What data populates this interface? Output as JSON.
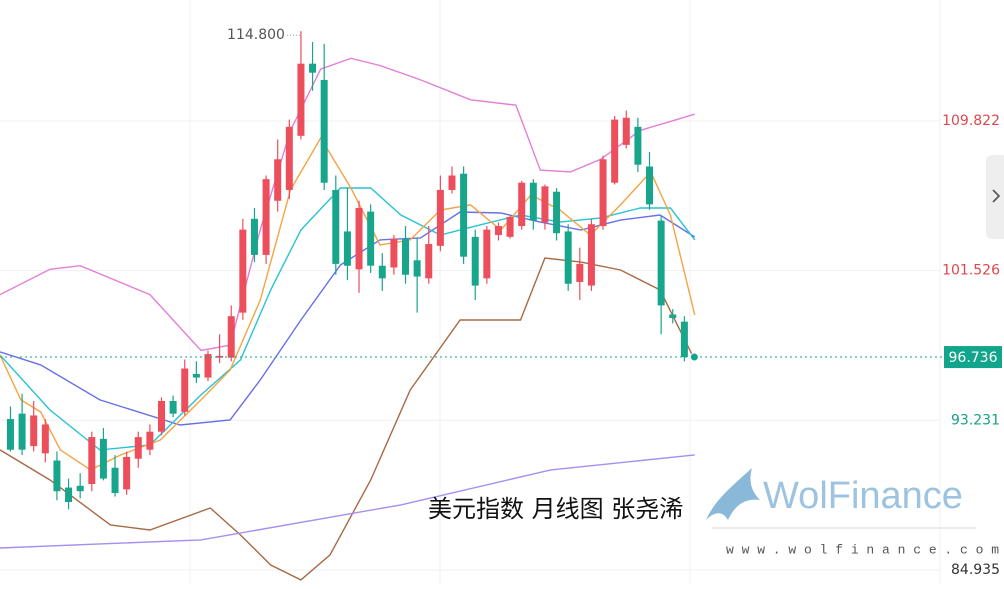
{
  "chart_data": {
    "type": "candlestick",
    "title": "美元指数 月线图 张尧浠",
    "watermark": "WolFinance",
    "url": "w w w . w o l f i n a n c e . c o m",
    "xlim": [
      -0.9,
      80
    ],
    "ylim": [
      84.1,
      116.53
    ],
    "yticks": [
      109.822,
      101.526,
      93.231,
      84.935
    ],
    "ytick_colors": [
      "#e0474c",
      "#e0474c",
      "#16a085",
      "#333333"
    ],
    "grid": true,
    "up_color": "#ec4e5c",
    "down_color": "#17a58c",
    "max_label": {
      "value": 114.8,
      "label": "114.800"
    },
    "max_index": 25,
    "open": [
      93.3,
      93.6,
      91.8,
      91.4,
      91.0,
      89.5,
      89.6,
      89.7,
      92.2,
      90.6,
      89.4,
      91.1,
      91.6,
      92.6,
      94.3,
      93.7,
      95.8,
      95.6,
      96.7,
      96.7,
      99.2,
      104.4,
      102.4,
      105.4,
      106.0,
      109.0,
      113.0,
      112.1,
      106.0,
      103.7,
      101.6,
      104.8,
      101.8,
      101.7,
      103.3,
      102.1,
      101.1,
      102.9,
      106.0,
      106.9,
      103.4,
      101.1,
      103.5,
      103.4,
      104.0,
      106.4,
      104.2,
      105.9,
      103.7,
      100.9,
      100.7,
      104.0,
      106.4,
      108.5,
      109.5,
      107.3,
      104.3,
      99.1,
      98.7
    ],
    "high": [
      94.0,
      94.7,
      94.3,
      93.3,
      91.5,
      90.0,
      90.3,
      92.6,
      92.8,
      91.3,
      91.5,
      92.6,
      93.0,
      94.5,
      94.6,
      96.6,
      96.5,
      97.1,
      98.0,
      99.6,
      104.4,
      105.0,
      106.8,
      108.8,
      109.9,
      114.8,
      114.2,
      114.1,
      106.8,
      106.1,
      105.4,
      105.2,
      102.5,
      103.5,
      104.0,
      103.3,
      104.0,
      106.8,
      107.3,
      107.3,
      103.8,
      104.0,
      104.2,
      104.6,
      106.5,
      106.6,
      106.3,
      106.1,
      104.1,
      102.8,
      104.4,
      107.9,
      110.1,
      110.4,
      110.0,
      108.1,
      104.6,
      99.4,
      99.0
    ],
    "low": [
      91.5,
      91.3,
      91.5,
      90.9,
      88.8,
      88.3,
      88.9,
      89.3,
      89.9,
      89.0,
      89.1,
      90.6,
      91.3,
      92.4,
      93.4,
      93.5,
      95.3,
      95.4,
      96.4,
      96.5,
      98.8,
      102.0,
      101.9,
      104.8,
      105.5,
      108.8,
      111.5,
      106.0,
      101.3,
      101.0,
      100.3,
      101.4,
      100.4,
      101.3,
      100.8,
      99.2,
      100.8,
      102.6,
      105.8,
      101.9,
      99.9,
      100.8,
      103.2,
      103.3,
      103.8,
      103.8,
      103.8,
      103.2,
      100.4,
      99.9,
      100.4,
      103.8,
      106.3,
      108.3,
      107.0,
      104.9,
      98.0,
      98.6,
      96.5
    ],
    "close": [
      91.6,
      91.6,
      93.5,
      93.0,
      89.3,
      88.7,
      89.3,
      92.3,
      90.0,
      89.2,
      91.2,
      92.3,
      92.6,
      94.3,
      93.6,
      96.1,
      95.6,
      96.9,
      96.8,
      99.0,
      103.8,
      102.4,
      106.6,
      107.7,
      109.5,
      113.0,
      112.5,
      106.4,
      101.9,
      101.8,
      105.0,
      101.8,
      101.1,
      103.3,
      101.3,
      101.2,
      103.0,
      106.0,
      106.8,
      102.3,
      100.7,
      103.8,
      104.0,
      104.5,
      106.4,
      104.3,
      106.2,
      103.6,
      100.8,
      101.9,
      104.1,
      107.7,
      109.9,
      110.0,
      107.4,
      105.2,
      99.6,
      98.9,
      96.736
    ],
    "last_price_color": "#11a68b",
    "lines": [
      {
        "color": "#e27fd8",
        "x": [
          -0.9,
          3.4,
          6.0,
          12.0,
          16.4,
          18.9,
          21.5,
          24.1,
          26.7,
          29.3,
          31.8,
          35.3,
          39.6,
          43.5,
          45.6,
          48.2,
          50.8,
          54.2,
          58.9
        ],
        "values": [
          100.2,
          101.6,
          101.8,
          100.2,
          97.1,
          97.4,
          103.8,
          109.3,
          112.7,
          113.3,
          112.9,
          112.1,
          111.0,
          110.7,
          107.1,
          107.0,
          107.7,
          109.3,
          110.2
        ]
      },
      {
        "color": "#a86a45",
        "x": [
          -0.9,
          3.4,
          8.6,
          12.0,
          17.2,
          19.8,
          22.4,
          25.0,
          27.5,
          31.0,
          34.4,
          38.7,
          43.9,
          46.0,
          49.1,
          52.5,
          55.9,
          58.9
        ],
        "values": [
          91.59,
          89.92,
          87.43,
          87.15,
          88.37,
          86.87,
          85.21,
          84.38,
          85.77,
          89.92,
          94.91,
          98.79,
          98.79,
          102.23,
          102.0,
          101.56,
          100.46,
          96.57
        ]
      },
      {
        "color": "#6670e8",
        "x": [
          -0.9,
          2.6,
          7.7,
          14.6,
          18.9,
          21.5,
          25.0,
          28.4,
          31.8,
          35.3,
          38.7,
          42.2,
          45.6,
          49.1,
          52.5,
          55.9,
          58.9
        ],
        "values": [
          97.02,
          96.3,
          94.36,
          92.97,
          93.25,
          95.47,
          98.79,
          101.84,
          103.23,
          103.34,
          104.78,
          104.72,
          104.22,
          103.78,
          104.33,
          104.61,
          103.39
        ]
      },
      {
        "color": "#27c3d3",
        "x": [
          -0.9,
          3.4,
          7.7,
          12.0,
          16.4,
          19.8,
          22.4,
          25.0,
          28.4,
          31.0,
          33.6,
          37.0,
          40.4,
          43.9,
          47.3,
          50.8,
          54.2,
          56.8,
          58.9
        ],
        "values": [
          96.85,
          93.8,
          91.59,
          91.86,
          94.64,
          96.58,
          100.46,
          103.78,
          106.11,
          106.11,
          104.61,
          103.5,
          104.06,
          104.61,
          104.22,
          104.45,
          105.0,
          105.0,
          103.23
        ]
      },
      {
        "color": "#f5a344",
        "x": [
          -0.9,
          0.9,
          2.6,
          4.3,
          6.9,
          9.5,
          12.9,
          16.4,
          18.9,
          21.5,
          24.1,
          26.7,
          29.3,
          31.8,
          34.4,
          37.0,
          39.6,
          42.2,
          44.8,
          47.3,
          49.9,
          52.5,
          55.1,
          56.8,
          58.9
        ],
        "values": [
          96.85,
          94.36,
          93.69,
          91.59,
          90.48,
          91.31,
          92.14,
          94.36,
          96.02,
          99.9,
          106.0,
          108.88,
          106.11,
          102.95,
          103.23,
          104.89,
          105.17,
          103.78,
          105.72,
          104.89,
          103.5,
          105.17,
          107.0,
          104.61,
          99.07
        ]
      },
      {
        "color": "#a58ff0",
        "x": [
          -0.9,
          16.4,
          33.6,
          46.5,
          58.9
        ],
        "values": [
          86.15,
          86.6,
          88.54,
          90.48,
          91.31
        ]
      }
    ]
  }
}
